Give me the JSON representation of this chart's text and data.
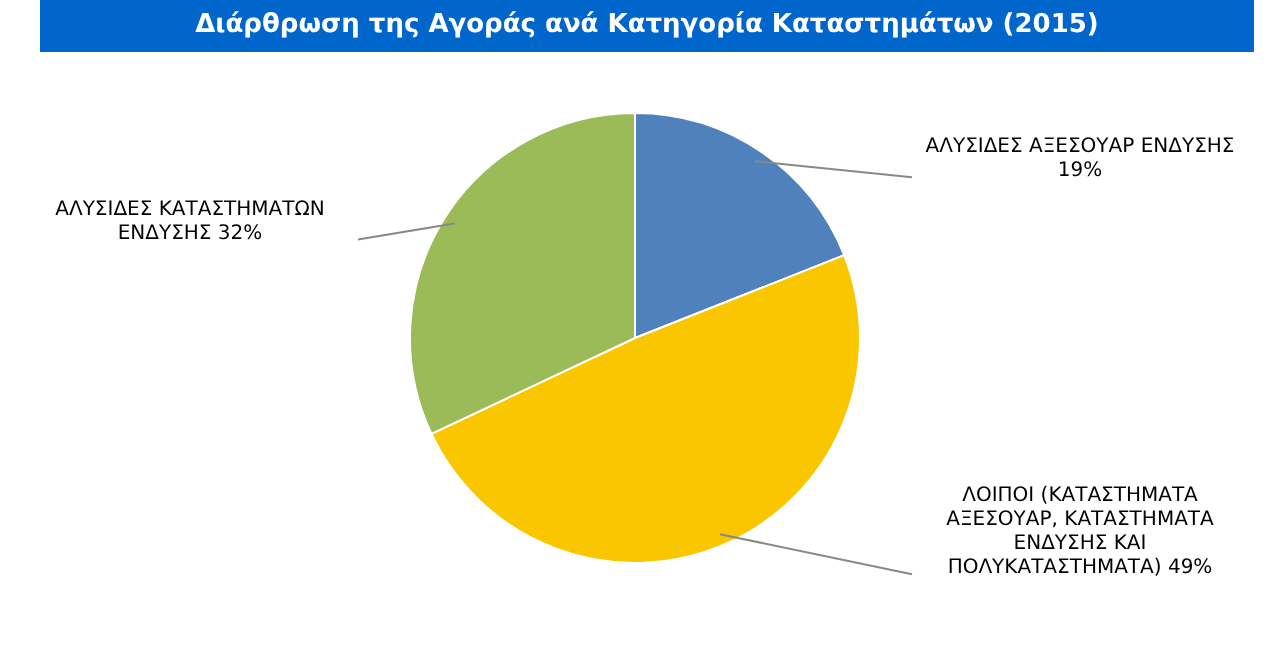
{
  "chart_data": {
    "type": "pie",
    "title": "Διάρθρωση της Αγοράς ανά Κατηγορία Καταστημάτων (2015)",
    "categories": [
      "ΑΛΥΣΙΔΕΣ ΑΞΕΣΟΥΑΡ ΕΝΔΥΣΗΣ",
      "ΛΟΙΠΟΙ (ΚΑΤΑΣΤΗΜΑΤΑ ΑΞΕΣΟΥΑΡ, ΚΑΤΑΣΤΗΜΑΤΑ ΕΝΔΥΣΗΣ ΚΑΙ ΠΟΛΥΚΑΤΑΣΤΗΜΑΤΑ)",
      "ΑΛΥΣΙΔΕΣ ΚΑΤΑΣΤΗΜΑΤΩΝ ΕΝΔΥΣΗΣ"
    ],
    "values": [
      19,
      49,
      32
    ],
    "value_labels": [
      "19%",
      "49%",
      "32%"
    ],
    "colors": [
      "#4f81bd",
      "#f9c600",
      "#9bbb59"
    ]
  }
}
